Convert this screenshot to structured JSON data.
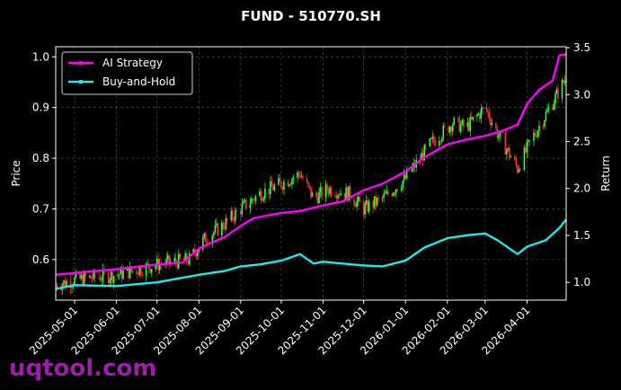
{
  "chart_data": {
    "type": "line",
    "title": "FUND - 510770.SH",
    "left_axis": {
      "label": "Price",
      "ylim": [
        0.52,
        1.02
      ],
      "ticks": [
        0.6,
        0.7,
        0.8,
        0.9,
        1.0
      ],
      "tick_labels": [
        "0.6",
        "0.7",
        "0.8",
        "0.9",
        "1.0"
      ]
    },
    "right_axis": {
      "label": "Return",
      "ylim": [
        0.81,
        3.51
      ],
      "ticks": [
        1.0,
        1.5,
        2.0,
        2.5,
        3.0,
        3.5
      ],
      "tick_labels": [
        "1.0",
        "1.5",
        "2.0",
        "2.5",
        "3.0",
        "3.5"
      ]
    },
    "x_axis": {
      "start": "2025-04-17",
      "end": "2026-04-30",
      "ticks": [
        "2025-05-01",
        "2025-06-01",
        "2025-07-01",
        "2025-08-01",
        "2025-09-01",
        "2025-10-01",
        "2025-11-01",
        "2025-12-01",
        "2026-01-01",
        "2026-02-01",
        "2026-03-01",
        "2026-04-01"
      ]
    },
    "grid": true,
    "legend_position": "top-left",
    "series": [
      {
        "name": "AI Strategy",
        "axis": "right",
        "color": "#ff00ff",
        "points": [
          [
            "2025-04-17",
            1.08
          ],
          [
            "2025-05-01",
            1.1
          ],
          [
            "2025-06-01",
            1.14
          ],
          [
            "2025-07-01",
            1.19
          ],
          [
            "2025-07-20",
            1.21
          ],
          [
            "2025-08-01",
            1.36
          ],
          [
            "2025-08-10",
            1.42
          ],
          [
            "2025-08-20",
            1.48
          ],
          [
            "2025-09-01",
            1.6
          ],
          [
            "2025-09-10",
            1.68
          ],
          [
            "2025-09-20",
            1.71
          ],
          [
            "2025-10-01",
            1.74
          ],
          [
            "2025-10-15",
            1.76
          ],
          [
            "2025-11-01",
            1.82
          ],
          [
            "2025-11-15",
            1.86
          ],
          [
            "2025-12-01",
            1.98
          ],
          [
            "2025-12-15",
            2.05
          ],
          [
            "2026-01-01",
            2.18
          ],
          [
            "2026-01-15",
            2.33
          ],
          [
            "2026-02-01",
            2.47
          ],
          [
            "2026-02-15",
            2.52
          ],
          [
            "2026-03-01",
            2.56
          ],
          [
            "2026-03-15",
            2.62
          ],
          [
            "2026-03-25",
            2.68
          ],
          [
            "2026-04-01",
            2.9
          ],
          [
            "2026-04-10",
            3.05
          ],
          [
            "2026-04-20",
            3.15
          ],
          [
            "2026-04-25",
            3.42
          ],
          [
            "2026-04-30",
            3.43
          ]
        ]
      },
      {
        "name": "Buy-and-Hold",
        "axis": "right",
        "color": "#1fe8ee",
        "points": [
          [
            "2025-04-17",
            0.93
          ],
          [
            "2025-05-01",
            0.97
          ],
          [
            "2025-06-01",
            0.96
          ],
          [
            "2025-07-01",
            1.0
          ],
          [
            "2025-08-01",
            1.08
          ],
          [
            "2025-08-20",
            1.12
          ],
          [
            "2025-09-01",
            1.17
          ],
          [
            "2025-09-15",
            1.19
          ],
          [
            "2025-10-01",
            1.23
          ],
          [
            "2025-10-15",
            1.3
          ],
          [
            "2025-10-25",
            1.2
          ],
          [
            "2025-11-01",
            1.22
          ],
          [
            "2025-11-15",
            1.2
          ],
          [
            "2025-12-01",
            1.18
          ],
          [
            "2025-12-15",
            1.17
          ],
          [
            "2026-01-01",
            1.23
          ],
          [
            "2026-01-15",
            1.37
          ],
          [
            "2026-02-01",
            1.47
          ],
          [
            "2026-02-15",
            1.5
          ],
          [
            "2026-03-01",
            1.52
          ],
          [
            "2026-03-10",
            1.45
          ],
          [
            "2026-03-25",
            1.3
          ],
          [
            "2026-04-01",
            1.38
          ],
          [
            "2026-04-15",
            1.45
          ],
          [
            "2026-04-25",
            1.58
          ],
          [
            "2026-04-30",
            1.67
          ]
        ]
      }
    ],
    "price_anchors": [
      [
        "2025-04-17",
        0.55
      ],
      [
        "2025-05-01",
        0.56
      ],
      [
        "2025-06-01",
        0.57
      ],
      [
        "2025-07-01",
        0.59
      ],
      [
        "2025-07-25",
        0.6
      ],
      [
        "2025-08-05",
        0.64
      ],
      [
        "2025-08-20",
        0.67
      ],
      [
        "2025-09-01",
        0.7
      ],
      [
        "2025-09-15",
        0.73
      ],
      [
        "2025-10-01",
        0.75
      ],
      [
        "2025-10-15",
        0.77
      ],
      [
        "2025-10-25",
        0.72
      ],
      [
        "2025-11-05",
        0.74
      ],
      [
        "2025-11-20",
        0.73
      ],
      [
        "2025-12-01",
        0.7
      ],
      [
        "2025-12-15",
        0.72
      ],
      [
        "2026-01-01",
        0.76
      ],
      [
        "2026-01-20",
        0.83
      ],
      [
        "2026-02-05",
        0.87
      ],
      [
        "2026-02-15",
        0.86
      ],
      [
        "2026-03-01",
        0.9
      ],
      [
        "2026-03-10",
        0.85
      ],
      [
        "2026-03-25",
        0.78
      ],
      [
        "2026-04-05",
        0.84
      ],
      [
        "2026-04-20",
        0.91
      ],
      [
        "2026-04-30",
        0.96
      ]
    ],
    "candle_colors": {
      "up": "#33ff33",
      "down": "#ff3333"
    }
  },
  "watermark": "uqtool.com"
}
